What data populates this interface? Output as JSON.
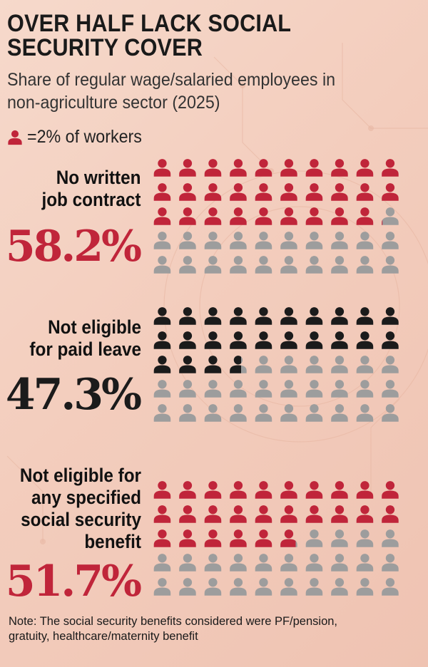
{
  "title": [
    "OVER HALF LACK SOCIAL",
    "SECURITY COVER"
  ],
  "subtitle": [
    "Share of regular wage/salaried employees in",
    "non-agriculture sector (2025)"
  ],
  "legend": {
    "icon": "person-icon",
    "text": "=2% of workers"
  },
  "note": [
    "Note: The social security benefits considered were PF/pension,",
    "gratuity, healthcare/maternity benefit"
  ],
  "colors": {
    "red": "#c0253a",
    "black": "#1b1b1b",
    "gray": "#9d9d9d",
    "background": "#f4d2c3"
  },
  "chart_data": {
    "type": "pictogram",
    "unit_value_percent": 2,
    "icons_per_group": 50,
    "series": [
      {
        "label_lines": [
          "No written",
          "job contract"
        ],
        "value": 58.2,
        "display": "58.2%",
        "color": "#c0253a"
      },
      {
        "label_lines": [
          "Not eligible",
          "for paid leave"
        ],
        "value": 47.3,
        "display": "47.3%",
        "color": "#1b1b1b"
      },
      {
        "label_lines": [
          "Not eligible for",
          "any specified",
          "social security",
          "benefit"
        ],
        "value": 51.7,
        "display": "51.7%",
        "color": "#c0253a"
      }
    ]
  }
}
